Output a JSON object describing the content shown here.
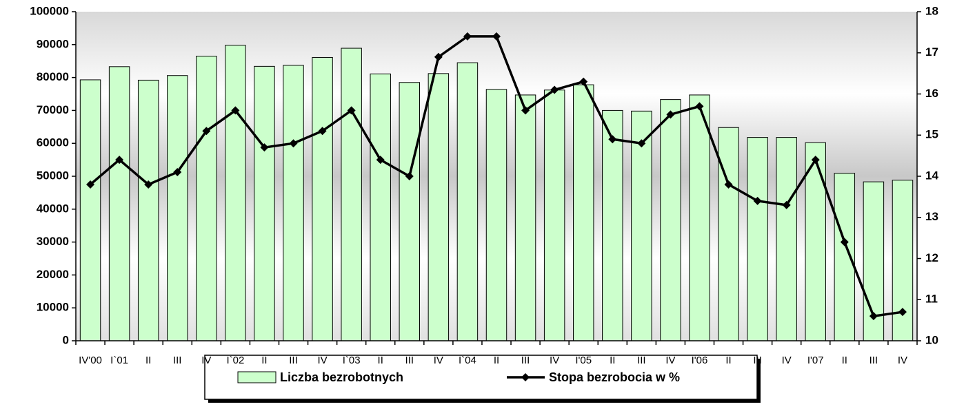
{
  "chart_data": {
    "type": "bar-line",
    "categories": [
      "IV'00",
      "I`01",
      "II",
      "III",
      "IV",
      "I`02",
      "II",
      "III",
      "IV",
      "I`03",
      "II",
      "III",
      "IV",
      "I`04",
      "II",
      "III",
      "IV",
      "I'05",
      "II",
      "III",
      "IV",
      "I'06",
      "II",
      "III",
      "IV",
      "I'07",
      "II",
      "III",
      "IV"
    ],
    "series": [
      {
        "name": "Liczba bezrobotnych",
        "type": "bar",
        "color": "#ccffcc",
        "values": [
          79300,
          83300,
          79200,
          80600,
          86500,
          89800,
          83400,
          83700,
          86100,
          88900,
          81100,
          78500,
          81200,
          84500,
          76400,
          74700,
          76200,
          77800,
          70000,
          69800,
          73300,
          74700,
          64800,
          61800,
          61800,
          60200,
          50900,
          48300,
          48800
        ]
      },
      {
        "name": "Stopa bezrobocia w %",
        "type": "line",
        "axis": "y2",
        "color": "#000000",
        "values": [
          13.8,
          14.4,
          13.8,
          14.1,
          15.1,
          15.6,
          14.7,
          14.8,
          15.1,
          15.6,
          14.4,
          14.0,
          16.9,
          17.4,
          17.4,
          15.6,
          16.1,
          16.3,
          14.9,
          14.8,
          15.5,
          15.7,
          13.8,
          13.4,
          13.3,
          14.4,
          12.4,
          10.6,
          10.7
        ]
      }
    ],
    "ylim": [
      0,
      100000
    ],
    "yticks": [
      0,
      10000,
      20000,
      30000,
      40000,
      50000,
      60000,
      70000,
      80000,
      90000,
      100000
    ],
    "y2lim": [
      10,
      18
    ],
    "y2ticks": [
      10,
      11,
      12,
      13,
      14,
      15,
      16,
      17,
      18
    ],
    "legend": "bottom"
  }
}
